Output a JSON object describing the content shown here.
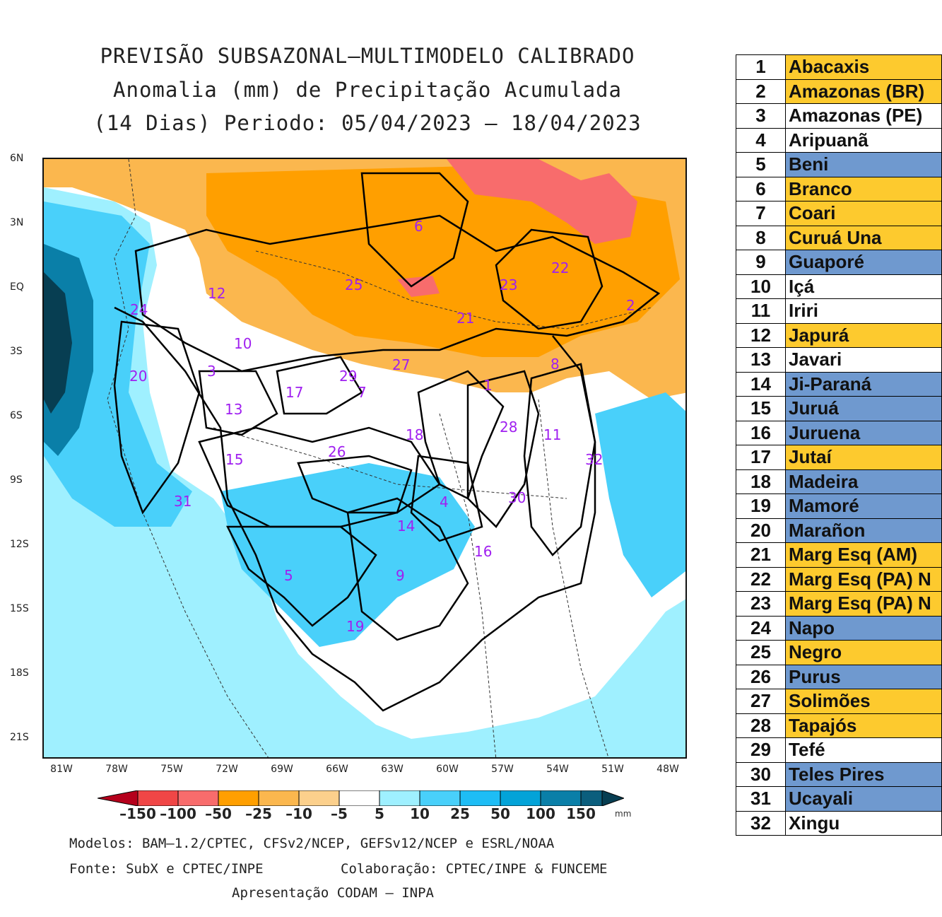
{
  "title": {
    "line1": "PREVISÃO SUBSAZONAL–MULTIMODELO CALIBRADO",
    "line2": "Anomalia (mm) de Precipitação Acumulada",
    "line3": "(14 Dias) Periodo: 05/04/2023 – 18/04/2023"
  },
  "map": {
    "lat_labels": [
      "6N",
      "3N",
      "EQ",
      "3S",
      "6S",
      "9S",
      "12S",
      "15S",
      "18S",
      "21S"
    ],
    "lon_labels": [
      "81W",
      "78W",
      "75W",
      "72W",
      "69W",
      "66W",
      "63W",
      "60W",
      "57W",
      "54W",
      "51W",
      "48W"
    ],
    "basin_numbers": [
      "1",
      "2",
      "3",
      "4",
      "5",
      "6",
      "7",
      "8",
      "9",
      "10",
      "11",
      "12",
      "13",
      "14",
      "15",
      "16",
      "17",
      "18",
      "19",
      "20",
      "21",
      "22",
      "23",
      "24",
      "25",
      "26",
      "27",
      "28",
      "29",
      "30",
      "31",
      "32"
    ]
  },
  "colorbar": {
    "labels": [
      "–150",
      "–100",
      "–50",
      "–25",
      "–10",
      "–5",
      "5",
      "10",
      "25",
      "50",
      "100",
      "150"
    ],
    "unit": "mm",
    "colors": {
      "c1": "#b5001c",
      "c2": "#f04646",
      "c3": "#f86c6c",
      "c4": "#ff9f00",
      "c5": "#fbb74e",
      "c6": "#fcd08c",
      "c7": "#ffffff",
      "c8": "#9ff0ff",
      "c9": "#49d0fa",
      "c10": "#1ebdf5",
      "c11": "#03a3d8",
      "c12": "#0a7fa8",
      "c13": "#0b5e7d",
      "c14": "#073e52"
    }
  },
  "footer": {
    "models": "Modelos: BAM–1.2/CPTEC, CFSv2/NCEP, GEFSv12/NCEP e ESRL/NOAA",
    "source": "Fonte: SubX e CPTEC/INPE",
    "collab": "Colaboração: CPTEC/INPE & FUNCEME",
    "presentation": "Apresentação CODAM – INPA"
  },
  "basins": [
    {
      "num": "1",
      "name": "Abacaxis",
      "color": "#fdca2e"
    },
    {
      "num": "2",
      "name": "Amazonas (BR)",
      "color": "#fdca2e"
    },
    {
      "num": "3",
      "name": "Amazonas (PE)",
      "color": "#ffffff"
    },
    {
      "num": "4",
      "name": "Aripuanã",
      "color": "#ffffff"
    },
    {
      "num": "5",
      "name": "Beni",
      "color": "#6f99cf"
    },
    {
      "num": "6",
      "name": "Branco",
      "color": "#fdca2e"
    },
    {
      "num": "7",
      "name": "Coari",
      "color": "#fdca2e"
    },
    {
      "num": "8",
      "name": "Curuá Una",
      "color": "#fdca2e"
    },
    {
      "num": "9",
      "name": "Guaporé",
      "color": "#6f99cf"
    },
    {
      "num": "10",
      "name": "Içá",
      "color": "#ffffff"
    },
    {
      "num": "11",
      "name": "Iriri",
      "color": "#ffffff"
    },
    {
      "num": "12",
      "name": "Japurá",
      "color": "#fdca2e"
    },
    {
      "num": "13",
      "name": "Javari",
      "color": "#ffffff"
    },
    {
      "num": "14",
      "name": "Ji-Paraná",
      "color": "#6f99cf"
    },
    {
      "num": "15",
      "name": "Juruá",
      "color": "#6f99cf"
    },
    {
      "num": "16",
      "name": "Juruena",
      "color": "#6f99cf"
    },
    {
      "num": "17",
      "name": "Jutaí",
      "color": "#fdca2e"
    },
    {
      "num": "18",
      "name": "Madeira",
      "color": "#6f99cf"
    },
    {
      "num": "19",
      "name": "Mamoré",
      "color": "#6f99cf"
    },
    {
      "num": "20",
      "name": "Marañon",
      "color": "#6f99cf"
    },
    {
      "num": "21",
      "name": "Marg Esq (AM)",
      "color": "#fdca2e"
    },
    {
      "num": "22",
      "name": "Marg Esq (PA) N",
      "color": "#fdca2e"
    },
    {
      "num": "23",
      "name": "Marg Esq (PA) N",
      "color": "#fdca2e"
    },
    {
      "num": "24",
      "name": "Napo",
      "color": "#6f99cf"
    },
    {
      "num": "25",
      "name": "Negro",
      "color": "#fdca2e"
    },
    {
      "num": "26",
      "name": "Purus",
      "color": "#6f99cf"
    },
    {
      "num": "27",
      "name": "Solimões",
      "color": "#fdca2e"
    },
    {
      "num": "28",
      "name": "Tapajós",
      "color": "#fdca2e"
    },
    {
      "num": "29",
      "name": "Tefé",
      "color": "#ffffff"
    },
    {
      "num": "30",
      "name": "Teles Pires",
      "color": "#6f99cf"
    },
    {
      "num": "31",
      "name": "Ucayali",
      "color": "#6f99cf"
    },
    {
      "num": "32",
      "name": "Xingu",
      "color": "#ffffff"
    }
  ]
}
